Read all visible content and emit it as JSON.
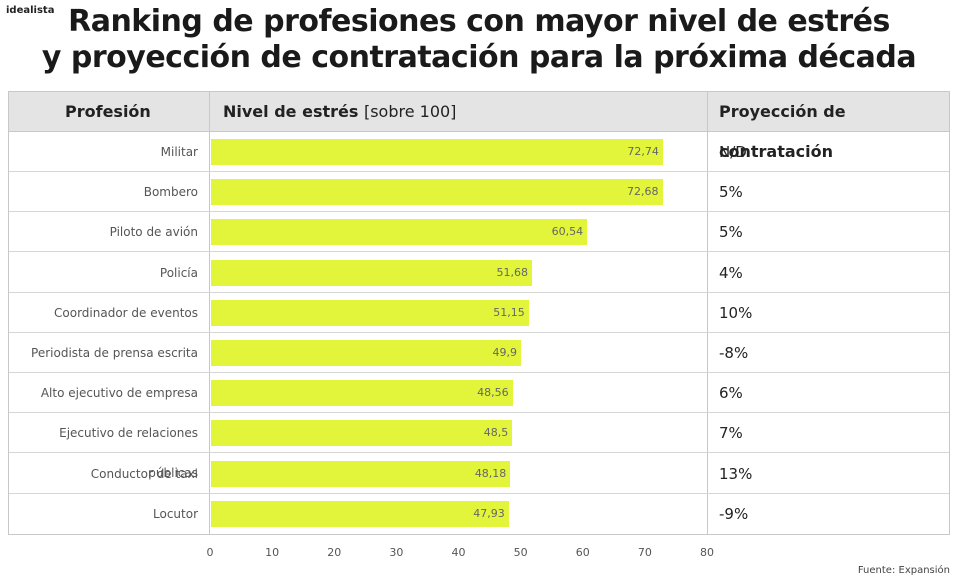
{
  "brand": "idealista",
  "title_line1": "Ranking de profesiones con mayor nivel de estrés",
  "title_line2": "y proyección de contratación para la próxima década",
  "header": {
    "profession": "Profesión",
    "stress": "Nivel de estrés",
    "stress_unit": "[sobre 100]",
    "projection": "Proyección de contratación"
  },
  "source": "Fuente: Expansión",
  "colors": {
    "bar": "#e2f53a",
    "header_bg": "#e4e4e4"
  },
  "chart_data": {
    "type": "bar",
    "orientation": "horizontal",
    "categories": [
      "Militar",
      "Bombero",
      "Piloto de avión",
      "Policía",
      "Coordinador de eventos",
      "Periodista de prensa escrita",
      "Alto ejecutivo de empresa",
      "Ejecutivo de relaciones públicas",
      "Conductor de taxi",
      "Locutor"
    ],
    "values": [
      72.74,
      72.68,
      60.54,
      51.68,
      51.15,
      49.9,
      48.56,
      48.5,
      48.18,
      47.93
    ],
    "value_labels": [
      "72,74",
      "72,68",
      "60,54",
      "51,68",
      "51,15",
      "49,9",
      "48,56",
      "48,5",
      "48,18",
      "47,93"
    ],
    "projection": [
      "N/D",
      "5%",
      "5%",
      "4%",
      "10%",
      "-8%",
      "6%",
      "7%",
      "13%",
      "-9%"
    ],
    "xlim": [
      0,
      80
    ],
    "xticks": [
      "0",
      "10",
      "20",
      "30",
      "40",
      "50",
      "60",
      "70",
      "80"
    ],
    "grid": false,
    "legend": "none"
  }
}
